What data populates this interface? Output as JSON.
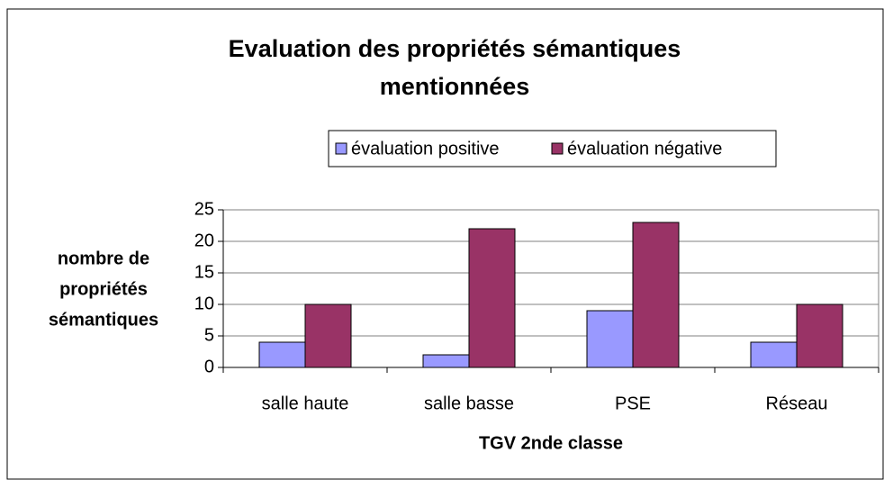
{
  "chart_data": {
    "type": "bar",
    "title": [
      "Evaluation des propriétés sémantiques",
      "mentionnées"
    ],
    "ylabel": [
      "nombre de",
      "propriétés",
      "sémantiques"
    ],
    "xlabel": "TGV 2nde classe",
    "categories": [
      "salle haute",
      "salle basse",
      "PSE",
      "Réseau"
    ],
    "series": [
      {
        "name": "évaluation positive",
        "color": "#9999ff",
        "values": [
          4,
          2,
          9,
          4
        ]
      },
      {
        "name": "évaluation négative",
        "color": "#993366",
        "values": [
          10,
          22,
          23,
          10
        ]
      }
    ],
    "ylim": [
      0,
      25
    ],
    "yticks": [
      0,
      5,
      10,
      15,
      20,
      25
    ],
    "grid": true,
    "legend": "top"
  }
}
